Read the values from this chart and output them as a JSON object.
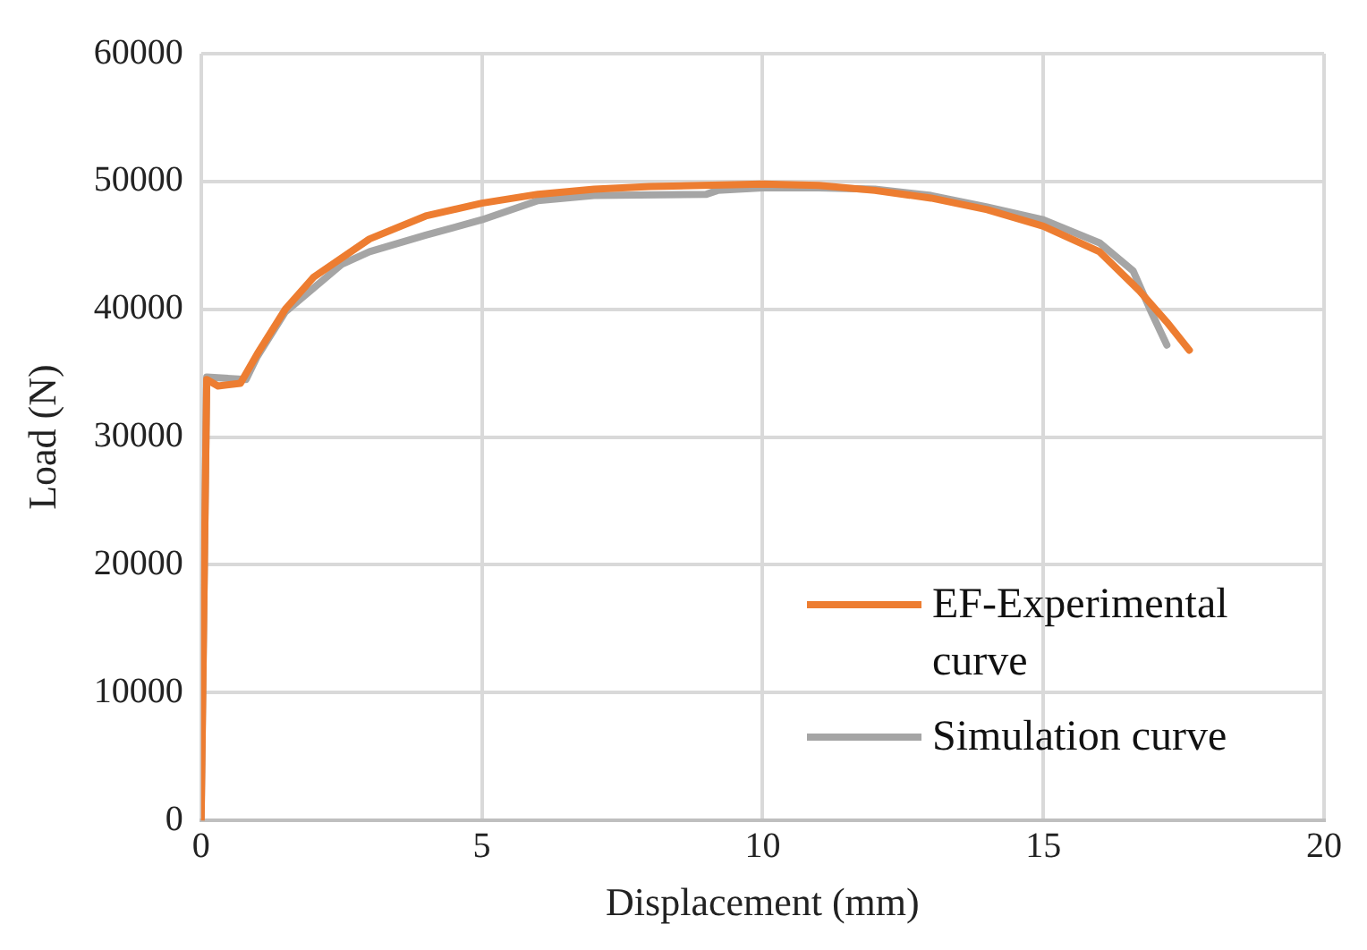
{
  "chart_data": {
    "type": "line",
    "xlabel": "Displacement (mm)",
    "ylabel": "Load (N)",
    "xlim": [
      0,
      20
    ],
    "xticks": [
      0,
      5,
      10,
      15,
      20
    ],
    "ylim": [
      0,
      60000
    ],
    "yticks": [
      0,
      10000,
      20000,
      30000,
      40000,
      50000,
      60000
    ],
    "grid": true,
    "legend": "bottom right",
    "marker": "none",
    "line_style": "solid",
    "series": [
      {
        "name": "EF-Experimental curve",
        "color": "#ed7d31",
        "x": [
          0,
          0.1,
          0.3,
          0.7,
          1,
          1.5,
          2,
          3,
          4,
          5,
          6,
          7,
          8,
          10,
          11,
          12,
          13,
          14,
          15,
          16,
          16.7,
          17.2,
          17.6
        ],
        "values": [
          0,
          34500,
          34000,
          34200,
          36500,
          40000,
          42500,
          45500,
          47300,
          48300,
          49000,
          49400,
          49600,
          49800,
          49700,
          49300,
          48700,
          47800,
          46500,
          44500,
          41500,
          39000,
          36800
        ]
      },
      {
        "name": "Simulation curve",
        "color": "#a5a5a5",
        "x": [
          0,
          0.1,
          0.8,
          1,
          1.5,
          2.5,
          3,
          4,
          5,
          6,
          7,
          9,
          9.2,
          10,
          11,
          12,
          13,
          14,
          15,
          16,
          16.6,
          16.9,
          17.2
        ],
        "values": [
          0,
          34700,
          34500,
          36300,
          39800,
          43500,
          44500,
          45800,
          47000,
          48500,
          48900,
          49000,
          49300,
          49500,
          49500,
          49400,
          48900,
          48000,
          47000,
          45200,
          43000,
          40000,
          37200
        ]
      }
    ]
  }
}
